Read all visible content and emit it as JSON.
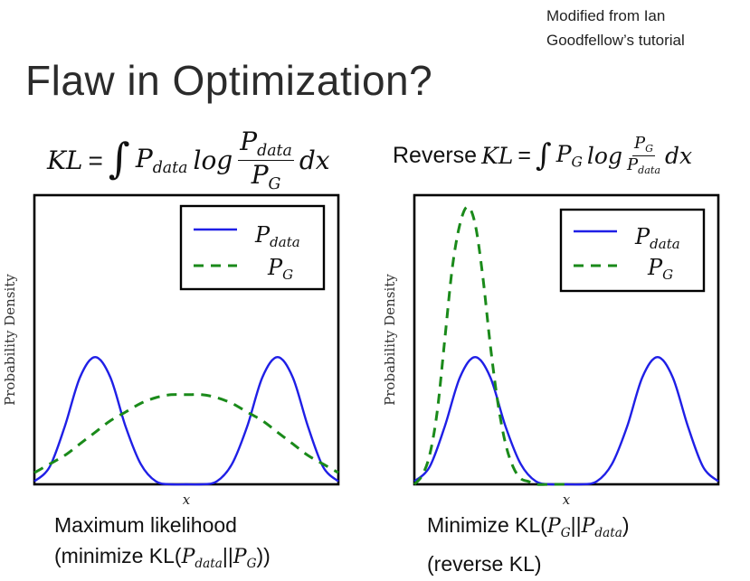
{
  "credit": {
    "line1": "Modified from Ian",
    "line2": "Goodfellow’s tutorial"
  },
  "title": "Flaw in Optimization?",
  "formulas": {
    "left": {
      "lhs": "KL",
      "equals": "=",
      "integral": "∫",
      "p": "P",
      "p_sub": "data",
      "log": "log",
      "num": "P",
      "num_sub": "data",
      "den": "P",
      "den_sub": "G",
      "dx": "dx"
    },
    "right": {
      "prefix": "Reverse",
      "lhs": "KL",
      "equals": "=",
      "integral": "∫",
      "p": "P",
      "p_sub": "G",
      "log": "log",
      "num": "P",
      "num_sub": "G",
      "den": "P",
      "den_sub": "data",
      "dx": "dx"
    }
  },
  "captions": {
    "left": {
      "line1": "Maximum likelihood",
      "line2_pre": "(minimize KL(",
      "a": "P",
      "a_sub": "data",
      "sep": "||",
      "b": "P",
      "b_sub": "G",
      "line2_post": "))"
    },
    "right": {
      "line1_pre": "Minimize KL(",
      "a": "P",
      "a_sub": "G",
      "sep": "||",
      "b": "P",
      "b_sub": "data",
      "line1_post": ")",
      "line2": "(reverse KL)"
    }
  },
  "chart_data": [
    {
      "type": "line",
      "xlabel": "x",
      "ylabel": "Probability Density",
      "xlim": [
        -1.0,
        1.0
      ],
      "ylim": [
        0,
        1.0
      ],
      "legend": "top-right",
      "series": [
        {
          "name": "P",
          "name_sub": "data",
          "style": "solid",
          "color": "#1f1fe6",
          "x": [
            -1.0,
            -0.9,
            -0.8,
            -0.7,
            -0.6,
            -0.5,
            -0.4,
            -0.3,
            -0.2,
            -0.1,
            0.0,
            0.1,
            0.2,
            0.3,
            0.4,
            0.5,
            0.6,
            0.7,
            0.8,
            0.9,
            1.0
          ],
          "y": [
            0.01,
            0.06,
            0.2,
            0.37,
            0.44,
            0.37,
            0.2,
            0.07,
            0.01,
            0.0,
            0.0,
            0.0,
            0.01,
            0.07,
            0.2,
            0.37,
            0.44,
            0.37,
            0.2,
            0.06,
            0.01
          ]
        },
        {
          "name": "P",
          "name_sub": "G",
          "style": "dashed",
          "color": "#1a8a1a",
          "x": [
            -1.0,
            -0.9,
            -0.8,
            -0.7,
            -0.6,
            -0.5,
            -0.4,
            -0.3,
            -0.2,
            -0.1,
            0.0,
            0.1,
            0.2,
            0.3,
            0.4,
            0.5,
            0.6,
            0.7,
            0.8,
            0.9,
            1.0
          ],
          "y": [
            0.04,
            0.07,
            0.1,
            0.14,
            0.18,
            0.22,
            0.25,
            0.28,
            0.3,
            0.31,
            0.31,
            0.31,
            0.3,
            0.28,
            0.25,
            0.22,
            0.18,
            0.14,
            0.1,
            0.07,
            0.04
          ]
        }
      ]
    },
    {
      "type": "line",
      "xlabel": "x",
      "ylabel": "Probability Density",
      "xlim": [
        -1.0,
        1.0
      ],
      "ylim": [
        0,
        1.0
      ],
      "legend": "top-right",
      "series": [
        {
          "name": "P",
          "name_sub": "data",
          "style": "solid",
          "color": "#1f1fe6",
          "x": [
            -1.0,
            -0.9,
            -0.8,
            -0.7,
            -0.6,
            -0.5,
            -0.4,
            -0.3,
            -0.2,
            -0.1,
            0.0,
            0.1,
            0.2,
            0.3,
            0.4,
            0.5,
            0.6,
            0.7,
            0.8,
            0.9,
            1.0
          ],
          "y": [
            0.01,
            0.06,
            0.2,
            0.37,
            0.44,
            0.37,
            0.2,
            0.07,
            0.01,
            0.0,
            0.0,
            0.0,
            0.01,
            0.07,
            0.2,
            0.37,
            0.44,
            0.37,
            0.2,
            0.06,
            0.01
          ]
        },
        {
          "name": "P",
          "name_sub": "G",
          "style": "dashed",
          "color": "#1a8a1a",
          "x": [
            -1.0,
            -0.95,
            -0.9,
            -0.85,
            -0.8,
            -0.75,
            -0.7,
            -0.65,
            -0.6,
            -0.55,
            -0.5,
            -0.45,
            -0.4,
            -0.35,
            -0.3,
            -0.25,
            -0.2,
            -0.1,
            0.0
          ],
          "y": [
            0.0,
            0.03,
            0.1,
            0.25,
            0.5,
            0.75,
            0.9,
            0.96,
            0.9,
            0.72,
            0.48,
            0.28,
            0.14,
            0.06,
            0.02,
            0.01,
            0.0,
            0.0,
            0.0
          ]
        }
      ]
    }
  ]
}
